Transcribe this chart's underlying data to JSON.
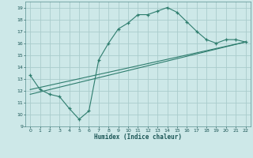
{
  "xlabel": "Humidex (Indice chaleur)",
  "bg_color": "#cde8e8",
  "grid_color": "#aacccc",
  "line_color": "#2e7d6e",
  "xlim": [
    -0.5,
    22.5
  ],
  "ylim": [
    9,
    19.5
  ],
  "xticks": [
    0,
    1,
    2,
    3,
    4,
    5,
    6,
    7,
    8,
    9,
    10,
    11,
    12,
    13,
    14,
    15,
    16,
    17,
    18,
    19,
    20,
    21,
    22
  ],
  "yticks": [
    9,
    10,
    11,
    12,
    13,
    14,
    15,
    16,
    17,
    18,
    19
  ],
  "curve_x": [
    0,
    1,
    2,
    3,
    4,
    5,
    6,
    7,
    8,
    9,
    10,
    11,
    12,
    13,
    14,
    15,
    16,
    17,
    18,
    19,
    20,
    21,
    22
  ],
  "curve_y": [
    13.3,
    12.1,
    11.7,
    11.5,
    10.5,
    9.6,
    10.3,
    14.6,
    16.0,
    17.2,
    17.7,
    18.4,
    18.4,
    18.7,
    19.0,
    18.6,
    17.8,
    17.0,
    16.3,
    16.0,
    16.3,
    16.3,
    16.1
  ],
  "line1_x": [
    0,
    22
  ],
  "line1_y": [
    12.1,
    16.1
  ],
  "line2_x": [
    0,
    22
  ],
  "line2_y": [
    11.7,
    16.1
  ]
}
